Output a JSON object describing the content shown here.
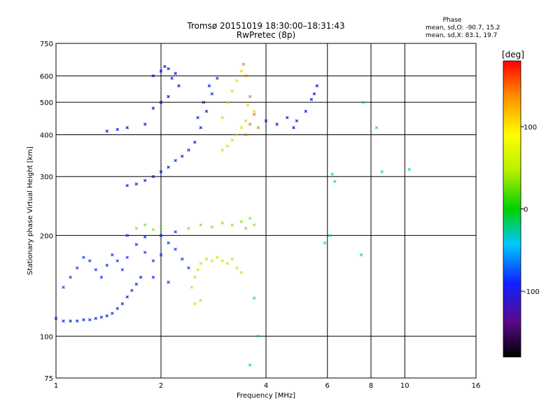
{
  "chart_data": {
    "type": "scatter",
    "title": "Tromsø 20151019 18:30:00–18:31:43",
    "subtitle": "RwPretec (8p)",
    "xlabel": "Frequency [MHz]",
    "ylabel": "Stationary phase Virtual Height [km]",
    "x_scale": "log",
    "y_scale": "log",
    "xlim": [
      1,
      16
    ],
    "ylim": [
      75,
      750
    ],
    "x_ticks": [
      "1",
      "2",
      "4",
      "6",
      "8",
      "10",
      "16"
    ],
    "y_ticks": [
      "75",
      "100",
      "200",
      "300",
      "400",
      "500",
      "600",
      "750"
    ],
    "grid": true,
    "stats": {
      "heading": "Phase",
      "line_o": "mean, sd,O: -90.7, 15.2",
      "line_x": "mean, sd,X: 83.1, 19.7"
    },
    "colorbar": {
      "label": "[deg]",
      "ticks": [
        "100",
        "0",
        "-100"
      ],
      "tick_values": [
        100,
        0,
        -100
      ],
      "range": [
        -180,
        180
      ]
    },
    "series": [
      {
        "trace": "low_E_rising",
        "color": "#1030e0",
        "points": [
          [
            1.0,
            113
          ],
          [
            1.05,
            111
          ],
          [
            1.1,
            111
          ],
          [
            1.15,
            111
          ],
          [
            1.2,
            112
          ],
          [
            1.25,
            112
          ],
          [
            1.3,
            113
          ],
          [
            1.35,
            114
          ],
          [
            1.4,
            115
          ],
          [
            1.45,
            117
          ],
          [
            1.5,
            121
          ],
          [
            1.55,
            125
          ],
          [
            1.6,
            131
          ],
          [
            1.65,
            137
          ],
          [
            1.7,
            143
          ],
          [
            1.75,
            150
          ]
        ]
      },
      {
        "trace": "lower_cloud_blue",
        "color": "#1a3cf0",
        "points": [
          [
            1.05,
            140
          ],
          [
            1.1,
            150
          ],
          [
            1.15,
            160
          ],
          [
            1.2,
            172
          ],
          [
            1.25,
            168
          ],
          [
            1.3,
            158
          ],
          [
            1.35,
            150
          ],
          [
            1.4,
            163
          ],
          [
            1.45,
            175
          ],
          [
            1.5,
            168
          ],
          [
            1.55,
            158
          ],
          [
            1.6,
            172
          ],
          [
            1.7,
            188
          ],
          [
            1.8,
            178
          ],
          [
            1.9,
            168
          ],
          [
            2.0,
            175
          ],
          [
            2.1,
            190
          ],
          [
            2.2,
            182
          ],
          [
            2.3,
            170
          ],
          [
            2.4,
            160
          ],
          [
            1.6,
            200
          ],
          [
            1.8,
            198
          ],
          [
            2.0,
            200
          ],
          [
            2.2,
            205
          ],
          [
            1.9,
            150
          ],
          [
            2.1,
            145
          ]
        ]
      },
      {
        "trace": "lower_cloud_yellow",
        "color": "#d0e020",
        "points": [
          [
            2.45,
            140
          ],
          [
            2.5,
            150
          ],
          [
            2.55,
            158
          ],
          [
            2.6,
            165
          ],
          [
            2.7,
            170
          ],
          [
            2.8,
            168
          ],
          [
            2.9,
            172
          ],
          [
            3.0,
            168
          ],
          [
            3.1,
            165
          ],
          [
            3.2,
            170
          ],
          [
            3.3,
            160
          ],
          [
            3.4,
            155
          ],
          [
            2.6,
            128
          ],
          [
            2.5,
            125
          ]
        ]
      },
      {
        "trace": "mid_band_green_yellow",
        "color": "#90e040",
        "points": [
          [
            1.7,
            210
          ],
          [
            1.8,
            215
          ],
          [
            1.9,
            208
          ],
          [
            2.0,
            212
          ],
          [
            2.4,
            210
          ],
          [
            2.6,
            215
          ],
          [
            2.8,
            212
          ],
          [
            3.0,
            218
          ],
          [
            3.2,
            215
          ],
          [
            3.4,
            220
          ],
          [
            3.6,
            225
          ],
          [
            3.7,
            215
          ],
          [
            3.5,
            210
          ]
        ]
      },
      {
        "trace": "F_trace_blue",
        "color": "#1028e8",
        "points": [
          [
            1.6,
            282
          ],
          [
            1.7,
            285
          ],
          [
            1.8,
            292
          ],
          [
            1.9,
            300
          ],
          [
            2.0,
            310
          ],
          [
            2.1,
            320
          ],
          [
            2.2,
            335
          ],
          [
            2.3,
            345
          ],
          [
            2.4,
            360
          ],
          [
            2.5,
            380
          ],
          [
            2.6,
            420
          ],
          [
            2.7,
            470
          ],
          [
            2.8,
            530
          ],
          [
            2.9,
            590
          ],
          [
            2.55,
            450
          ],
          [
            2.65,
            500
          ],
          [
            2.75,
            560
          ]
        ]
      },
      {
        "trace": "F_cusp_top_blue",
        "color": "#1020d8",
        "points": [
          [
            1.9,
            600
          ],
          [
            2.0,
            620
          ],
          [
            2.05,
            640
          ],
          [
            2.1,
            630
          ],
          [
            2.2,
            610
          ],
          [
            2.15,
            590
          ],
          [
            2.25,
            560
          ],
          [
            2.1,
            520
          ],
          [
            2.0,
            500
          ],
          [
            1.9,
            480
          ],
          [
            1.8,
            430
          ],
          [
            1.6,
            420
          ],
          [
            1.5,
            415
          ],
          [
            1.4,
            410
          ]
        ]
      },
      {
        "trace": "F_X_trace_yellow",
        "color": "#d8e018",
        "points": [
          [
            3.0,
            360
          ],
          [
            3.1,
            370
          ],
          [
            3.2,
            385
          ],
          [
            3.3,
            400
          ],
          [
            3.4,
            420
          ],
          [
            3.5,
            440
          ],
          [
            3.0,
            450
          ],
          [
            3.1,
            500
          ],
          [
            3.2,
            540
          ],
          [
            3.3,
            580
          ],
          [
            3.4,
            620
          ],
          [
            3.55,
            490
          ],
          [
            3.7,
            470
          ]
        ]
      },
      {
        "trace": "F_X_trace_orange",
        "color": "#f08020",
        "points": [
          [
            3.5,
            400
          ],
          [
            3.6,
            430
          ],
          [
            3.7,
            460
          ],
          [
            3.6,
            520
          ],
          [
            3.5,
            600
          ],
          [
            3.45,
            650
          ],
          [
            3.8,
            420
          ]
        ]
      },
      {
        "trace": "right_group",
        "color": "#1020d0",
        "points": [
          [
            4.0,
            440
          ],
          [
            4.3,
            430
          ],
          [
            4.6,
            450
          ],
          [
            4.9,
            440
          ],
          [
            5.2,
            470
          ],
          [
            5.4,
            510
          ],
          [
            5.6,
            560
          ],
          [
            5.5,
            530
          ],
          [
            4.8,
            420
          ]
        ]
      },
      {
        "trace": "sparse_scatter",
        "color": "#20d0d0",
        "points": [
          [
            7.6,
            500
          ],
          [
            8.3,
            420
          ],
          [
            8.6,
            310
          ],
          [
            10.3,
            315
          ],
          [
            6.2,
            305
          ],
          [
            6.3,
            290
          ],
          [
            6.1,
            200
          ],
          [
            7.5,
            175
          ],
          [
            5.9,
            190
          ],
          [
            3.7,
            130
          ],
          [
            3.8,
            100
          ],
          [
            3.6,
            82
          ]
        ]
      }
    ]
  }
}
